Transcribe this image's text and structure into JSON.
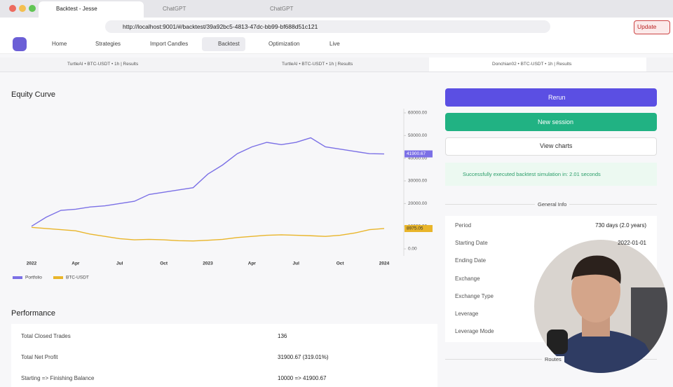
{
  "browser": {
    "tabs": [
      "Backtest - Jesse",
      "ChatGPT",
      "ChatGPT"
    ],
    "url": "http://localhost:9001/#/backtest/39a92bc5-4813-47dc-bb99-bf688d51c121",
    "update": "Update"
  },
  "nav": [
    "Home",
    "Strategies",
    "Import Candles",
    "Backtest",
    "Optimization",
    "Live"
  ],
  "session_tabs": [
    "TurtleAI • BTC-USDT • 1h | Results",
    "TurtleAI • BTC-USDT • 1h | Results",
    "Donchian02 • BTC-USDT • 1h | Results"
  ],
  "equity": {
    "title": "Equity Curve",
    "chart": {
      "type": "line",
      "x_labels": [
        "2022",
        "Apr",
        "Jul",
        "Oct",
        "2023",
        "Apr",
        "Jul",
        "Oct",
        "2024"
      ],
      "ylim": [
        0,
        60000
      ],
      "yticks": [
        {
          "value": 0,
          "label": "0.00"
        },
        {
          "value": 10000,
          "label": "10000.00"
        },
        {
          "value": 20000,
          "label": "20000.00"
        },
        {
          "value": 30000,
          "label": "30000.00"
        },
        {
          "value": 40000,
          "label": "40000.00"
        },
        {
          "value": 50000,
          "label": "50000.00"
        },
        {
          "value": 60000,
          "label": "60000.00"
        }
      ],
      "series": [
        {
          "name": "Portfolio",
          "color": "#7b70e6",
          "end_label": "41900.67",
          "values": [
            10000,
            14000,
            17000,
            17500,
            18500,
            19000,
            20000,
            21000,
            24000,
            25000,
            26000,
            27000,
            33000,
            37000,
            42000,
            45000,
            47000,
            46000,
            47000,
            49000,
            45000,
            44000,
            43000,
            42000,
            41900.67
          ]
        },
        {
          "name": "BTC-USDT",
          "color": "#e9b52a",
          "end_label": "8975.05",
          "values": [
            9500,
            9000,
            8500,
            8000,
            6500,
            5500,
            4500,
            4000,
            4200,
            4000,
            3600,
            3500,
            3800,
            4200,
            5000,
            5500,
            6000,
            6200,
            6000,
            5800,
            5500,
            6000,
            7000,
            8500,
            8975.05
          ]
        }
      ]
    }
  },
  "actions": [
    "Rerun",
    "New session",
    "View charts"
  ],
  "alert": "Successfully executed backtest simulation in: 2.01 seconds",
  "general_info": {
    "title": "General Info",
    "rows": [
      [
        "Period",
        "730 days (2.0 years)"
      ],
      [
        "Starting Date",
        "2022-01-01"
      ],
      [
        "Ending Date"
      ],
      [
        "Exchange"
      ],
      [
        "Exchange Type"
      ],
      [
        "Leverage"
      ],
      [
        "Leverage Mode"
      ]
    ],
    "routes": "Routes"
  },
  "performance": {
    "title": "Performance",
    "rows": [
      [
        "Total Closed Trades",
        "136"
      ],
      [
        "Total Net Profit",
        "31900.67 (319.01%)"
      ],
      [
        "Starting => Finishing Balance",
        "10000 => 41900.67"
      ]
    ]
  }
}
